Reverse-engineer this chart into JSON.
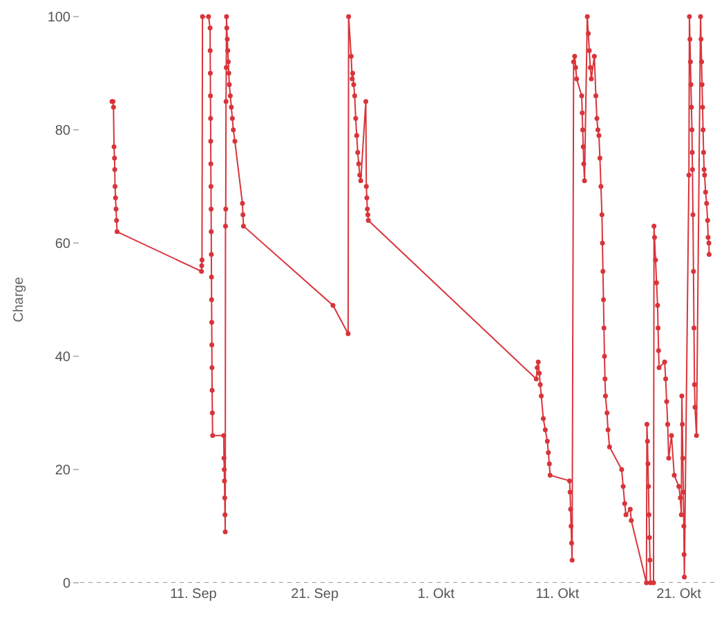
{
  "chart_data": {
    "type": "line",
    "ylabel": "Charge",
    "marker": "circle",
    "line_style": "solid",
    "grid": false,
    "xlim": [
      "--09-01T16:00",
      "--10-24T01:00"
    ],
    "xticks": [
      {
        "value": "--09-11",
        "label": "11. Sep"
      },
      {
        "value": "--09-21",
        "label": "21. Sep"
      },
      {
        "value": "--10-01",
        "label": "1. Okt"
      },
      {
        "value": "--10-11",
        "label": "11. Okt"
      },
      {
        "value": "--10-21",
        "label": "21. Okt"
      }
    ],
    "ylim": [
      0,
      100
    ],
    "yticks": [
      0,
      20,
      40,
      60,
      80,
      100
    ],
    "ref_lines": [
      {
        "axis": "y",
        "value": 0,
        "color": "#999999",
        "line_style": "dotted"
      }
    ],
    "series": [
      {
        "color": "#d8343a",
        "x": [
          "--09-04T07:00",
          "--09-04T09:00",
          "--09-04T10:00",
          "--09-04T11:00",
          "--09-04T12:00",
          "--09-04T12:30",
          "--09-04T13:00",
          "--09-04T14:00",
          "--09-04T15:00",
          "--09-04T16:00",
          "--09-04T17:00",
          "--09-11T16:00",
          "--09-11T16:30",
          "--09-11T17:00",
          "--09-11T18:00",
          "--09-12T06:00",
          "--09-12T09:00",
          "--09-12T09:15",
          "--09-12T09:30",
          "--09-12T09:45",
          "--09-12T10:00",
          "--09-12T10:15",
          "--09-12T10:30",
          "--09-12T10:45",
          "--09-12T11:00",
          "--09-12T11:15",
          "--09-12T11:30",
          "--09-12T11:45",
          "--09-12T12:00",
          "--09-12T12:15",
          "--09-12T12:30",
          "--09-12T12:45",
          "--09-12T13:00",
          "--09-12T13:30",
          "--09-12T14:00",
          "--09-13T12:00",
          "--09-13T12:30",
          "--09-13T13:00",
          "--09-13T13:30",
          "--09-13T14:00",
          "--09-13T14:30",
          "--09-13T15:00",
          "--09-13T15:30",
          "--09-13T16:00",
          "--09-13T16:30",
          "--09-13T17:00",
          "--09-13T17:30",
          "--09-13T18:00",
          "--09-13T19:00",
          "--09-13T20:00",
          "--09-13T21:00",
          "--09-13T22:00",
          "--09-13T23:00",
          "--09-14T01:00",
          "--09-14T03:00",
          "--09-14T05:00",
          "--09-14T07:00",
          "--09-14T10:00",
          "--09-15T01:00",
          "--09-15T02:00",
          "--09-15T03:00",
          "--09-22T12:00",
          "--09-23T18:00",
          "--09-23T19:00",
          "--09-24T00:00",
          "--09-24T02:00",
          "--09-24T03:00",
          "--09-24T05:00",
          "--09-24T07:00",
          "--09-24T09:00",
          "--09-24T11:00",
          "--09-24T13:00",
          "--09-24T15:00",
          "--09-24T17:00",
          "--09-24T19:00",
          "--09-25T05:00",
          "--09-25T06:00",
          "--09-25T07:00",
          "--09-25T08:00",
          "--09-25T09:00",
          "--09-25T10:00",
          "--10-09T06:00",
          "--10-09T08:00",
          "--10-09T10:00",
          "--10-09T12:00",
          "--10-09T14:00",
          "--10-09T16:00",
          "--10-09T20:00",
          "--10-10T00:00",
          "--10-10T04:00",
          "--10-10T06:00",
          "--10-10T08:00",
          "--10-10T09:30",
          "--10-12T00:00",
          "--10-12T01:00",
          "--10-12T02:00",
          "--10-12T03:00",
          "--10-12T04:00",
          "--10-12T05:00",
          "--10-12T08:00",
          "--10-12T10:00",
          "--10-12T12:00",
          "--10-12T14:00",
          "--10-13T00:00",
          "--10-13T01:00",
          "--10-13T02:00",
          "--10-13T03:00",
          "--10-13T04:00",
          "--10-13T05:30",
          "--10-13T11:00",
          "--10-13T13:00",
          "--10-13T15:00",
          "--10-13T17:00",
          "--10-13T19:00",
          "--10-14T01:00",
          "--10-14T04:00",
          "--10-14T06:00",
          "--10-14T08:00",
          "--10-14T10:00",
          "--10-14T12:00",
          "--10-14T14:00",
          "--10-14T16:00",
          "--10-14T17:00",
          "--10-14T18:00",
          "--10-14T19:00",
          "--10-14T20:00",
          "--10-14T21:00",
          "--10-14T22:00",
          "--10-14T23:00",
          "--10-15T02:00",
          "--10-15T04:00",
          "--10-15T07:00",
          "--10-16T07:00",
          "--10-16T10:00",
          "--10-16T13:00",
          "--10-16T15:30",
          "--10-17T00:00",
          "--10-17T02:00",
          "--10-18T08:00",
          "--10-18T09:00",
          "--10-18T10:00",
          "--10-18T11:00",
          "--10-18T12:00",
          "--10-18T13:00",
          "--10-18T14:00",
          "--10-18T15:00",
          "--10-18T16:00",
          "--10-18T22:00",
          "--10-18T23:00",
          "--10-19T00:00",
          "--10-19T02:00",
          "--10-19T04:00",
          "--10-19T06:00",
          "--10-19T07:00",
          "--10-19T08:00",
          "--10-19T09:00",
          "--10-19T20:00",
          "--10-19T22:00",
          "--10-20T00:00",
          "--10-20T02:00",
          "--10-20T04:00",
          "--10-20T09:30",
          "--10-20T15:00",
          "--10-21T00:00",
          "--10-21T03:00",
          "--10-21T05:00",
          "--10-21T06:00",
          "--10-21T07:00",
          "--10-21T08:00",
          "--10-21T09:00",
          "--10-21T10:00",
          "--10-21T10:30",
          "--10-21T11:00",
          "--10-21T20:00",
          "--10-21T21:00",
          "--10-21T22:00",
          "--10-21T23:00",
          "--10-22T00:00",
          "--10-22T01:00",
          "--10-22T02:00",
          "--10-22T02:30",
          "--10-22T03:00",
          "--10-22T04:00",
          "--10-22T05:00",
          "--10-22T06:00",
          "--10-22T07:00",
          "--10-22T08:00",
          "--10-22T11:00",
          "--10-22T19:00",
          "--10-22T20:00",
          "--10-22T21:00",
          "--10-22T22:00",
          "--10-22T23:00",
          "--10-23T00:00",
          "--10-23T01:00",
          "--10-23T02:00",
          "--10-23T03:00",
          "--10-23T05:00",
          "--10-23T07:00",
          "--10-23T09:00",
          "--10-23T10:00",
          "--10-23T11:30",
          "--10-23T12:00"
        ],
        "values": [
          85,
          85,
          84,
          77,
          75,
          73,
          70,
          68,
          66,
          64,
          62,
          55,
          56,
          57,
          100,
          100,
          98,
          94,
          90,
          86,
          82,
          78,
          74,
          70,
          66,
          62,
          58,
          54,
          50,
          46,
          42,
          38,
          34,
          30,
          26,
          26,
          22,
          20,
          18,
          15,
          12,
          9,
          63,
          66,
          85,
          91,
          100,
          98,
          96,
          94,
          92,
          90,
          88,
          86,
          84,
          82,
          80,
          78,
          67,
          65,
          63,
          49,
          44,
          100,
          93,
          89,
          90,
          88,
          86,
          82,
          79,
          76,
          74,
          72,
          71,
          85,
          70,
          68,
          66,
          65,
          64,
          36,
          38,
          39,
          37,
          35,
          33,
          29,
          27,
          25,
          23,
          21,
          19,
          18,
          16,
          13,
          10,
          7,
          4,
          92,
          93,
          91,
          89,
          86,
          83,
          80,
          77,
          74,
          71,
          100,
          97,
          94,
          91,
          89,
          93,
          86,
          82,
          80,
          79,
          75,
          70,
          65,
          60,
          55,
          50,
          45,
          40,
          36,
          33,
          30,
          27,
          24,
          20,
          17,
          14,
          12,
          13,
          11,
          0,
          28,
          25,
          21,
          17,
          12,
          8,
          4,
          0,
          0,
          63,
          61,
          57,
          53,
          49,
          45,
          41,
          38,
          39,
          36,
          32,
          28,
          22,
          26,
          19,
          17,
          15,
          12,
          33,
          28,
          22,
          16,
          10,
          5,
          1,
          72,
          100,
          96,
          92,
          88,
          84,
          80,
          76,
          73,
          65,
          55,
          45,
          35,
          31,
          26,
          100,
          96,
          92,
          88,
          84,
          80,
          76,
          73,
          72,
          69,
          67,
          64,
          61,
          60,
          58
        ]
      }
    ]
  }
}
